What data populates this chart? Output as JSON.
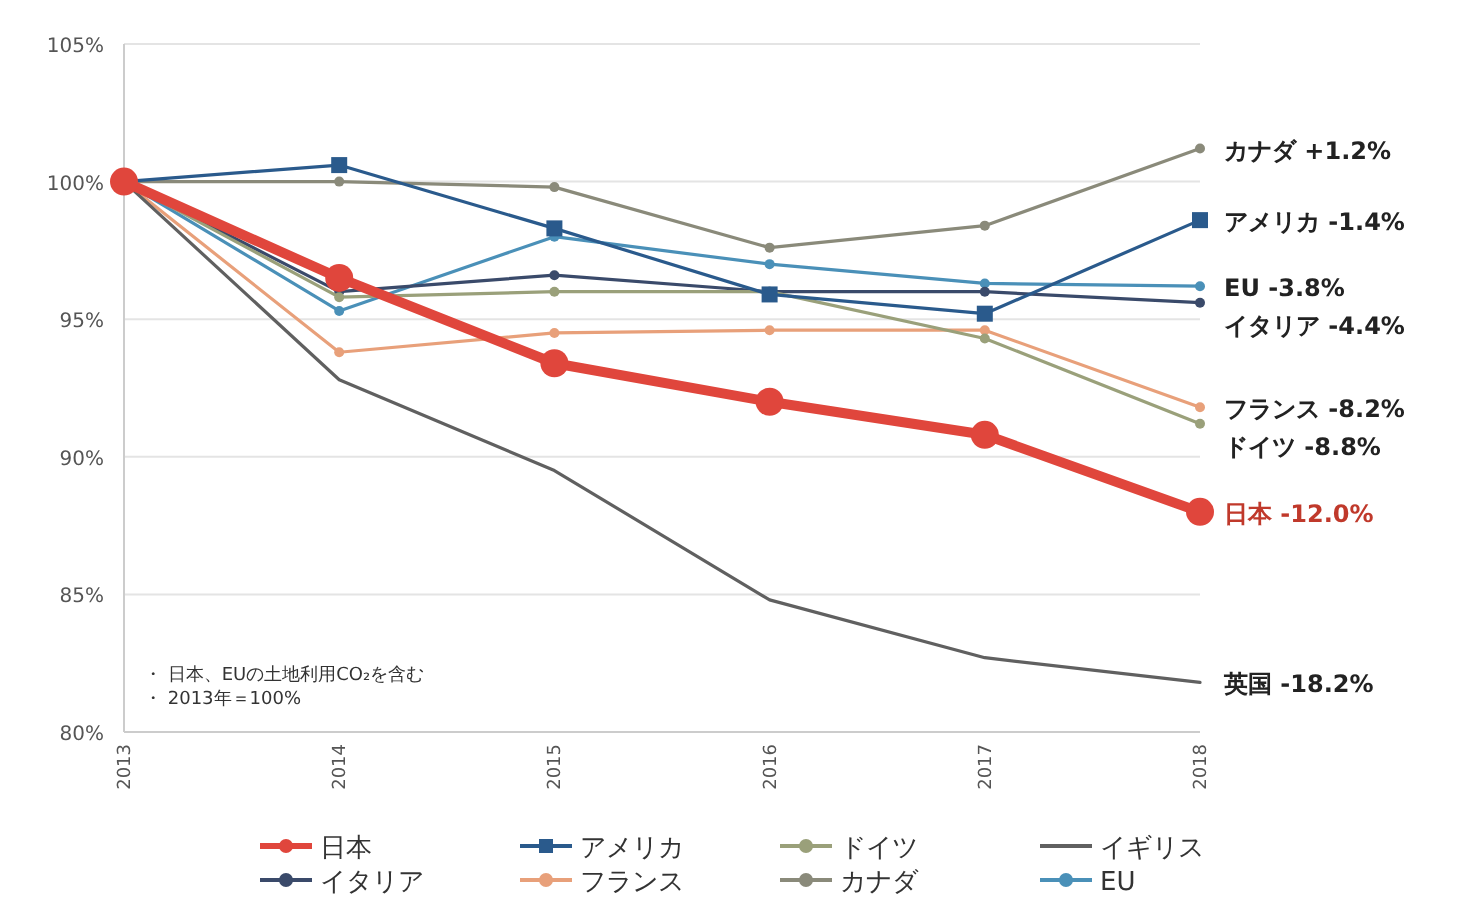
{
  "chart_data": {
    "type": "line",
    "x": [
      2013,
      2014,
      2015,
      2016,
      2017,
      2018
    ],
    "xlim": [
      2013,
      2018
    ],
    "xticks": [
      2013,
      2014,
      2015,
      2016,
      2017,
      2018
    ],
    "ylim": [
      80,
      105
    ],
    "yticks": [
      {
        "value": 80,
        "label": "80%"
      },
      {
        "value": 85,
        "label": "85%"
      },
      {
        "value": 90,
        "label": "90%"
      },
      {
        "value": 95,
        "label": "95%"
      },
      {
        "value": 100,
        "label": "100%"
      },
      {
        "value": 105,
        "label": "105%"
      }
    ],
    "grid": "y",
    "legend": "bottom",
    "series": [
      {
        "name": "日本",
        "color": "#e0463c",
        "marker": "circle",
        "values": [
          100,
          96.5,
          93.4,
          92.0,
          90.8,
          88.0
        ]
      },
      {
        "name": "アメリカ",
        "color": "#2a5a8c",
        "marker": "square",
        "values": [
          100,
          100.6,
          98.3,
          95.9,
          95.2,
          98.6
        ]
      },
      {
        "name": "ドイツ",
        "color": "#9aa07a",
        "marker": "circle",
        "values": [
          100,
          95.8,
          96.0,
          96.0,
          94.3,
          91.2
        ]
      },
      {
        "name": "イギリス",
        "color": "#606060",
        "marker": "none",
        "values": [
          100,
          92.8,
          89.5,
          84.8,
          82.7,
          81.8
        ]
      },
      {
        "name": "イタリア",
        "color": "#3a4a6a",
        "marker": "circle",
        "values": [
          100,
          96.0,
          96.6,
          96.0,
          96.0,
          95.6
        ]
      },
      {
        "name": "フランス",
        "color": "#e8a07a",
        "marker": "circle",
        "values": [
          100,
          93.8,
          94.5,
          94.6,
          94.6,
          91.8
        ]
      },
      {
        "name": "カナダ",
        "color": "#8a8a7a",
        "marker": "circle",
        "values": [
          100,
          100.0,
          99.8,
          97.6,
          98.4,
          101.2
        ]
      },
      {
        "name": "EU",
        "color": "#4a90b8",
        "marker": "circle",
        "values": [
          100,
          95.3,
          98.0,
          97.0,
          96.3,
          96.2
        ]
      }
    ],
    "annotations": [
      "日本 -12.0%",
      "アメリカ -1.4%",
      "ドイツ -8.8%",
      "英国 -18.2%",
      "イタリア -4.4%",
      "フランス -8.2%",
      "カナダ +1.2%",
      "EU -3.8%",
      "・ 日本、EUの土地利用CO₂を含む",
      "・ 2013年＝100%"
    ]
  }
}
